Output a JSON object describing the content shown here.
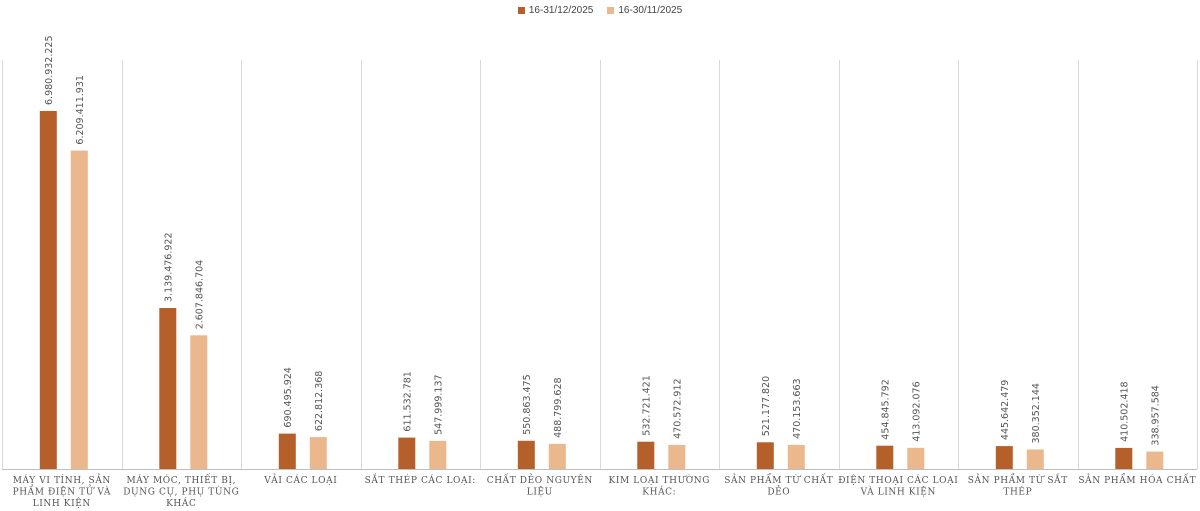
{
  "colors": {
    "series_1": "#b5602a",
    "series_2": "#ebb88d",
    "grid": "#d9d9d9",
    "axis": "#bfbfbf"
  },
  "chart_data": {
    "type": "bar",
    "title": "",
    "xlabel": "",
    "ylabel": "",
    "legend_position": "top-center",
    "grid": "vertical separators between categories",
    "ylim": [
      0,
      7500000000
    ],
    "categories": [
      "MÁY VI TÍNH, SẢN PHẨM ĐIỆN TỬ VÀ LINH KIỆN",
      "MÁY MÓC, THIẾT BỊ, DỤNG CỤ, PHỤ TÙNG KHÁC",
      "VẢI CÁC LOẠI",
      "SẮT THÉP CÁC LOẠI:",
      "CHẤT DẺO NGUYÊN LIỆU",
      "KIM LOẠI THƯỜNG KHÁC:",
      "SẢN PHẨM TỪ CHẤT DẺO",
      "ĐIỆN THOẠI CÁC LOẠI VÀ LINH KIỆN",
      "SẢN PHẨM TỪ SẮT THÉP",
      "SẢN PHẨM HÓA CHẤT"
    ],
    "category_lines": [
      [
        "MÁY VI TÍNH, SẢN",
        "PHẨM ĐIỆN TỬ VÀ",
        "LINH KIỆN"
      ],
      [
        "MÁY MÓC, THIẾT BỊ,",
        "DỤNG CỤ, PHỤ TÙNG",
        "KHÁC"
      ],
      [
        "VẢI CÁC LOẠI"
      ],
      [
        "SẮT THÉP CÁC LOẠI:"
      ],
      [
        "CHẤT DẺO NGUYÊN",
        "LIỆU"
      ],
      [
        "KIM LOẠI THƯỜNG",
        "KHÁC:"
      ],
      [
        "SẢN PHẨM TỪ CHẤT",
        "DẺO"
      ],
      [
        "ĐIỆN THOẠI CÁC LOẠI",
        "VÀ LINH KIỆN"
      ],
      [
        "SẢN PHẨM TỪ SẮT",
        "THÉP"
      ],
      [
        "SẢN PHẨM HÓA CHẤT"
      ]
    ],
    "series": [
      {
        "name": "16-31/12/2025",
        "values": [
          6980932225,
          3139476922,
          690495924,
          611532781,
          550863475,
          532721421,
          521177820,
          454845792,
          445642479,
          410502418
        ],
        "labels": [
          "6.980.932.225",
          "3.139.476.922",
          "690.495.924",
          "611.532.781",
          "550.863.475",
          "532.721.421",
          "521.177.820",
          "454.845.792",
          "445.642.479",
          "410.502.418"
        ]
      },
      {
        "name": "16-30/11/2025",
        "values": [
          6209411931,
          2607846704,
          622812368,
          547999137,
          488799628,
          470572912,
          470153663,
          413092076,
          380352144,
          338957584
        ],
        "labels": [
          "6.209.411.931",
          "2.607.846.704",
          "622.812.368",
          "547.999.137",
          "488.799.628",
          "470.572.912",
          "470.153.663",
          "413.092.076",
          "380.352.144",
          "338.957.584"
        ]
      }
    ]
  }
}
